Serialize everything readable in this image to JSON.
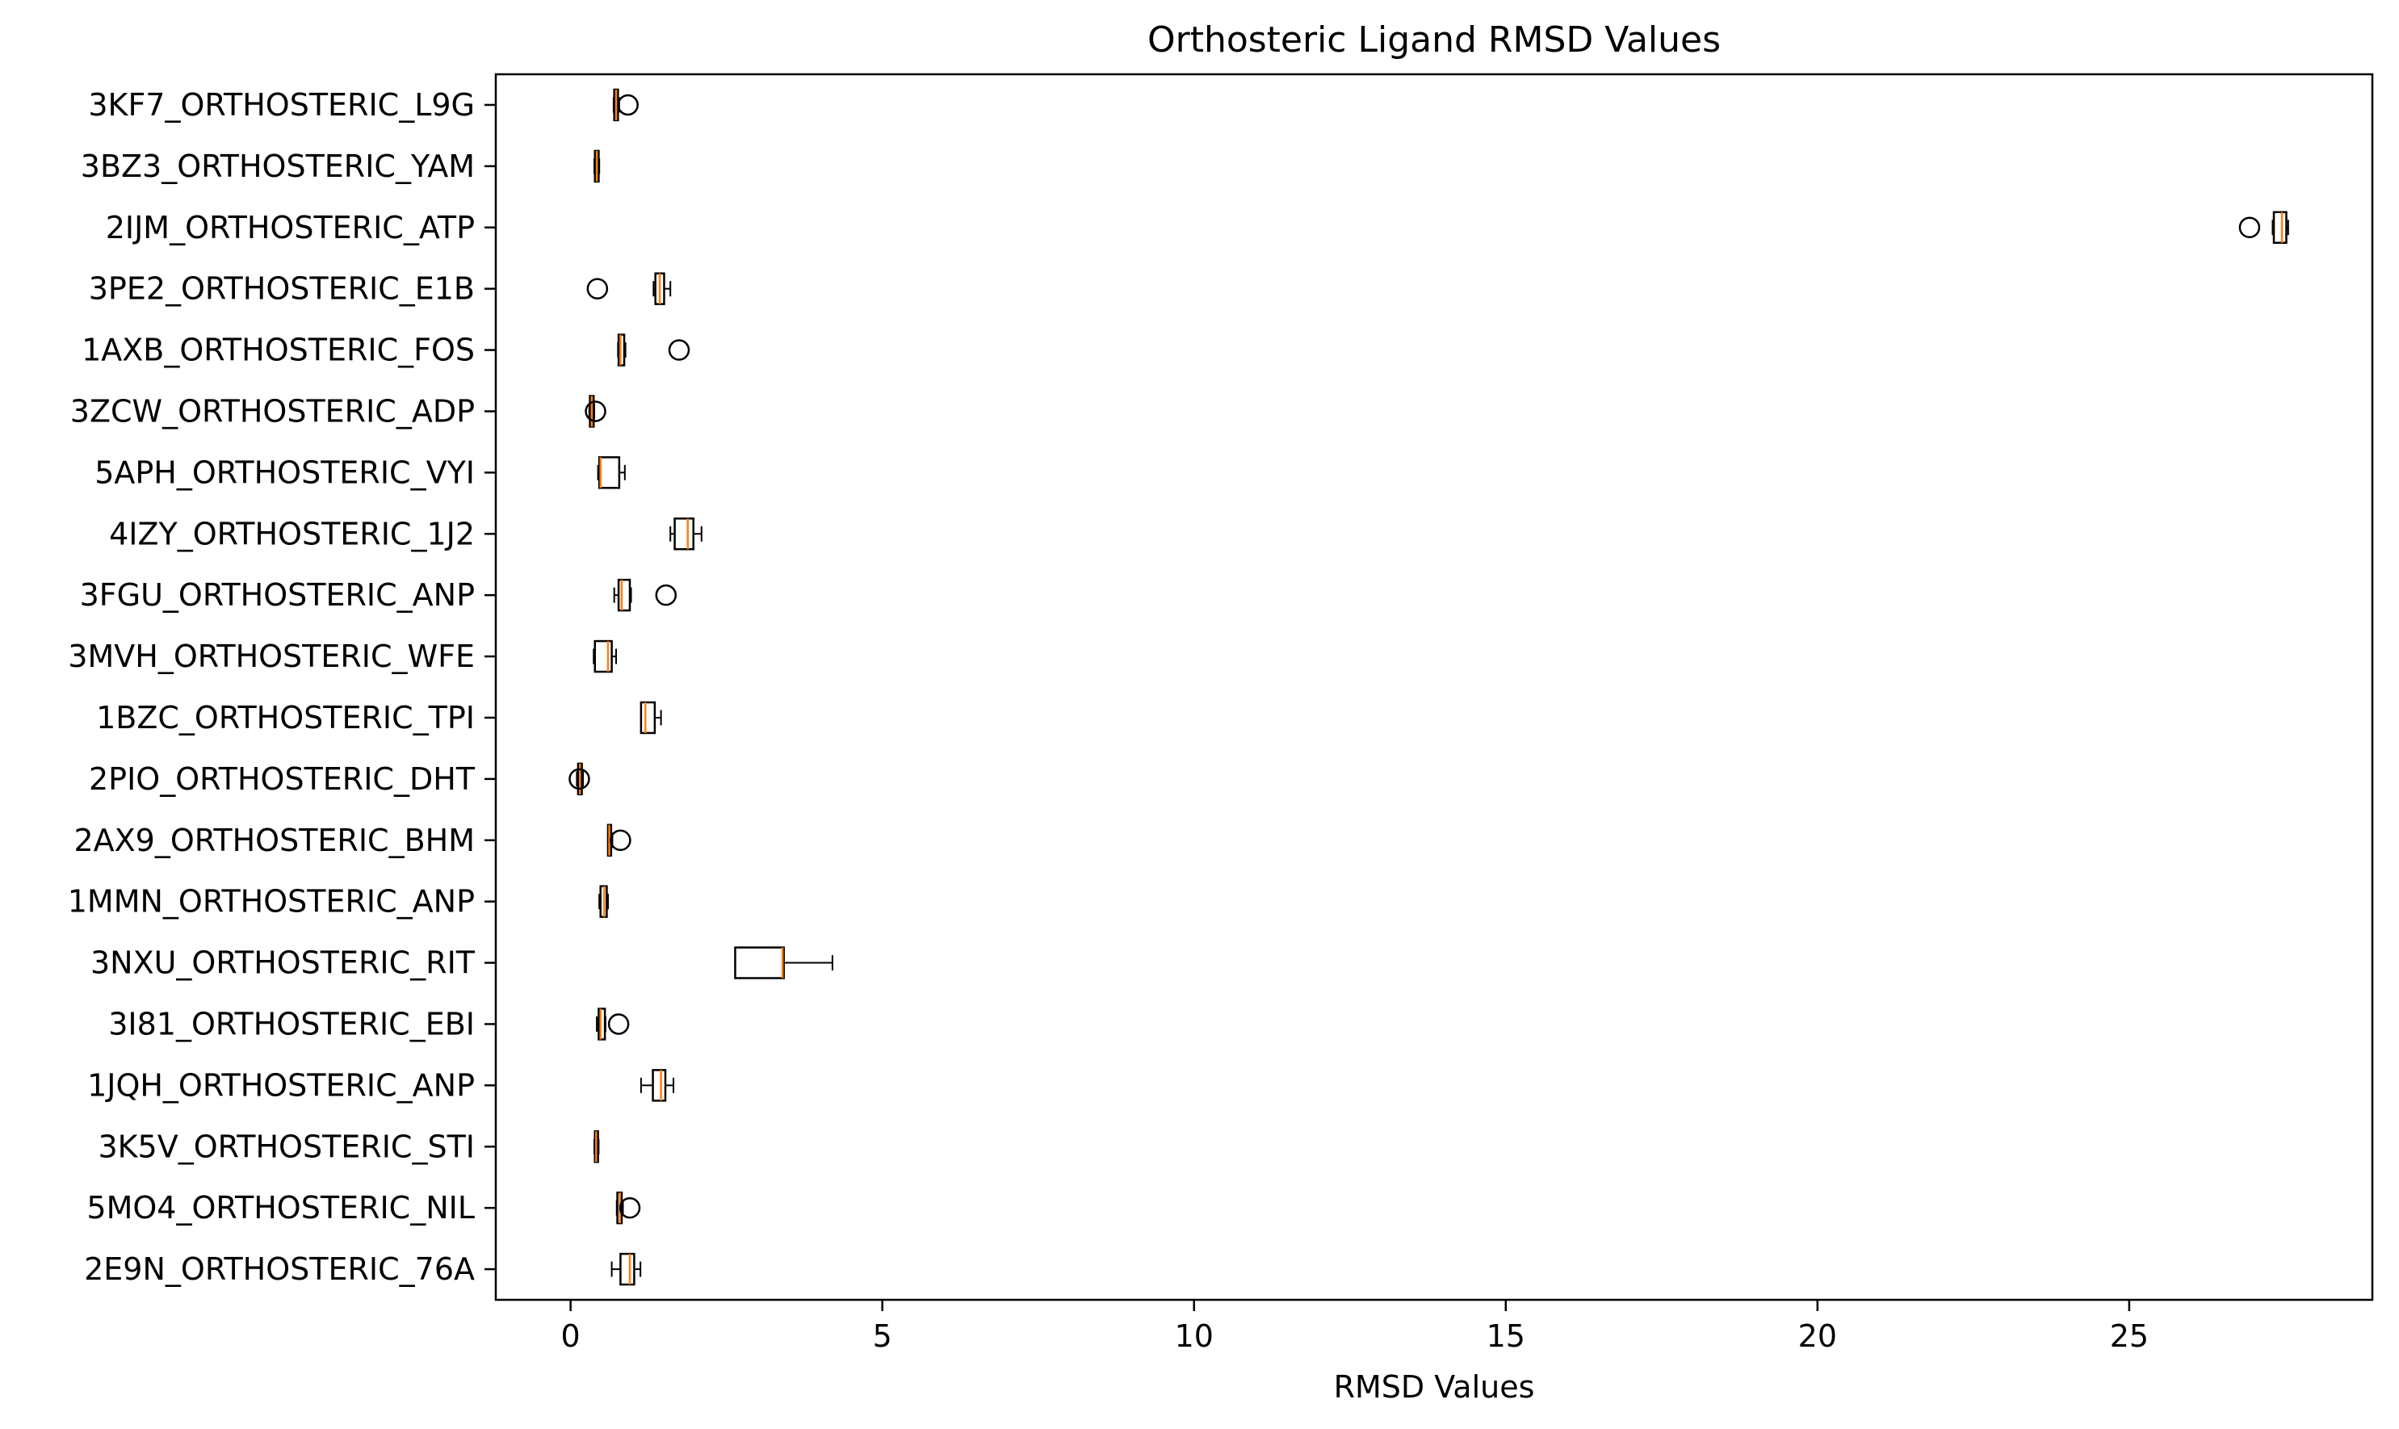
{
  "chart_data": {
    "type": "boxplot",
    "orientation": "horizontal",
    "title": "Orthosteric Ligand RMSD Values",
    "xlabel": "RMSD Values",
    "ylabel": "",
    "xlim": [
      -1.2,
      28.9
    ],
    "xticks": [
      0,
      5,
      10,
      15,
      20,
      25
    ],
    "grid": false,
    "colors": {
      "box": "#000000",
      "median": "#ff7f0e",
      "background": "#ffffff"
    },
    "categories": [
      "3KF7_ORTHOSTERIC_L9G",
      "3BZ3_ORTHOSTERIC_YAM",
      "2IJM_ORTHOSTERIC_ATP",
      "3PE2_ORTHOSTERIC_E1B",
      "1AXB_ORTHOSTERIC_FOS",
      "3ZCW_ORTHOSTERIC_ADP",
      "5APH_ORTHOSTERIC_VYI",
      "4IZY_ORTHOSTERIC_1J2",
      "3FGU_ORTHOSTERIC_ANP",
      "3MVH_ORTHOSTERIC_WFE",
      "1BZC_ORTHOSTERIC_TPI",
      "2PIO_ORTHOSTERIC_DHT",
      "2AX9_ORTHOSTERIC_BHM",
      "1MMN_ORTHOSTERIC_ANP",
      "3NXU_ORTHOSTERIC_RIT",
      "3I81_ORTHOSTERIC_EBI",
      "1JQH_ORTHOSTERIC_ANP",
      "3K5V_ORTHOSTERIC_STI",
      "5MO4_ORTHOSTERIC_NIL",
      "2E9N_ORTHOSTERIC_76A"
    ],
    "boxes": [
      {
        "whislo": 0.69,
        "q1": 0.7,
        "med": 0.73,
        "q3": 0.76,
        "whishi": 0.78,
        "fliers": [
          0.92
        ]
      },
      {
        "whislo": 0.38,
        "q1": 0.39,
        "med": 0.42,
        "q3": 0.45,
        "whishi": 0.46,
        "fliers": []
      },
      {
        "whislo": 27.3,
        "q1": 27.32,
        "med": 27.45,
        "q3": 27.52,
        "whishi": 27.55,
        "fliers": [
          26.93
        ]
      },
      {
        "whislo": 1.33,
        "q1": 1.36,
        "med": 1.43,
        "q3": 1.5,
        "whishi": 1.6,
        "fliers": [
          0.43
        ]
      },
      {
        "whislo": 0.76,
        "q1": 0.77,
        "med": 0.8,
        "q3": 0.86,
        "whishi": 0.88,
        "fliers": [
          1.74
        ]
      },
      {
        "whislo": 0.3,
        "q1": 0.31,
        "med": 0.34,
        "q3": 0.37,
        "whishi": 0.38,
        "fliers": [
          0.4
        ]
      },
      {
        "whislo": 0.44,
        "q1": 0.46,
        "med": 0.48,
        "q3": 0.78,
        "whishi": 0.87,
        "fliers": []
      },
      {
        "whislo": 1.6,
        "q1": 1.67,
        "med": 1.88,
        "q3": 1.97,
        "whishi": 2.1,
        "fliers": []
      },
      {
        "whislo": 0.7,
        "q1": 0.77,
        "med": 0.82,
        "q3": 0.95,
        "whishi": 0.97,
        "fliers": [
          1.53
        ]
      },
      {
        "whislo": 0.37,
        "q1": 0.39,
        "med": 0.6,
        "q3": 0.66,
        "whishi": 0.73,
        "fliers": []
      },
      {
        "whislo": 1.13,
        "q1": 1.13,
        "med": 1.2,
        "q3": 1.35,
        "whishi": 1.45,
        "fliers": []
      },
      {
        "whislo": 0.1,
        "q1": 0.12,
        "med": 0.15,
        "q3": 0.18,
        "whishi": 0.2,
        "fliers": [
          0.14
        ]
      },
      {
        "whislo": 0.6,
        "q1": 0.6,
        "med": 0.62,
        "q3": 0.65,
        "whishi": 0.67,
        "fliers": [
          0.8
        ]
      },
      {
        "whislo": 0.46,
        "q1": 0.48,
        "med": 0.54,
        "q3": 0.58,
        "whishi": 0.6,
        "fliers": []
      },
      {
        "whislo": 2.64,
        "q1": 2.64,
        "med": 3.4,
        "q3": 3.42,
        "whishi": 4.2,
        "fliers": []
      },
      {
        "whislo": 0.42,
        "q1": 0.45,
        "med": 0.48,
        "q3": 0.55,
        "whishi": 0.56,
        "fliers": [
          0.77
        ]
      },
      {
        "whislo": 1.13,
        "q1": 1.32,
        "med": 1.45,
        "q3": 1.52,
        "whishi": 1.65,
        "fliers": []
      },
      {
        "whislo": 0.38,
        "q1": 0.39,
        "med": 0.41,
        "q3": 0.44,
        "whishi": 0.45,
        "fliers": []
      },
      {
        "whislo": 0.74,
        "q1": 0.75,
        "med": 0.79,
        "q3": 0.82,
        "whishi": 0.84,
        "fliers": [
          0.95
        ]
      },
      {
        "whislo": 0.66,
        "q1": 0.8,
        "med": 0.95,
        "q3": 1.02,
        "whishi": 1.12,
        "fliers": []
      }
    ]
  }
}
